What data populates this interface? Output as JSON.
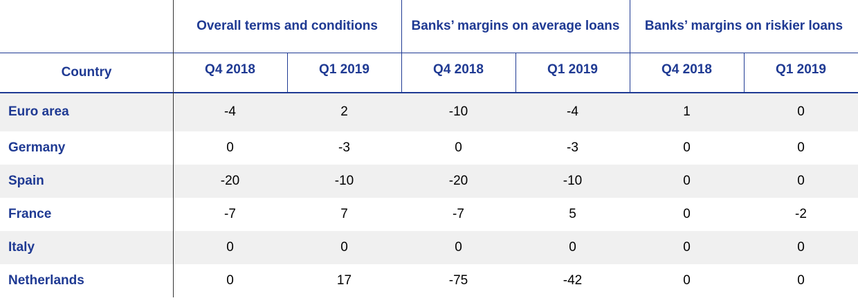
{
  "table": {
    "groups": [
      {
        "title": "Overall terms and conditions",
        "columns": [
          "Q4 2018",
          "Q1 2019"
        ]
      },
      {
        "title": "Banks’ margins on average loans",
        "columns": [
          "Q4 2018",
          "Q1 2019"
        ]
      },
      {
        "title": "Banks’ margins on riskier loans",
        "columns": [
          "Q4 2018",
          "Q1 2019"
        ]
      }
    ],
    "country_header": "Country",
    "rows": [
      {
        "country": "Euro area",
        "values": [
          -4,
          2,
          -10,
          -4,
          1,
          0
        ]
      },
      {
        "country": "Germany",
        "values": [
          0,
          -3,
          0,
          -3,
          0,
          0
        ]
      },
      {
        "country": "Spain",
        "values": [
          -20,
          -10,
          -20,
          -10,
          0,
          0
        ]
      },
      {
        "country": "France",
        "values": [
          -7,
          7,
          -7,
          5,
          0,
          -2
        ]
      },
      {
        "country": "Italy",
        "values": [
          0,
          0,
          0,
          0,
          0,
          0
        ]
      },
      {
        "country": "Netherlands",
        "values": [
          0,
          17,
          -75,
          -42,
          0,
          0
        ]
      }
    ]
  }
}
